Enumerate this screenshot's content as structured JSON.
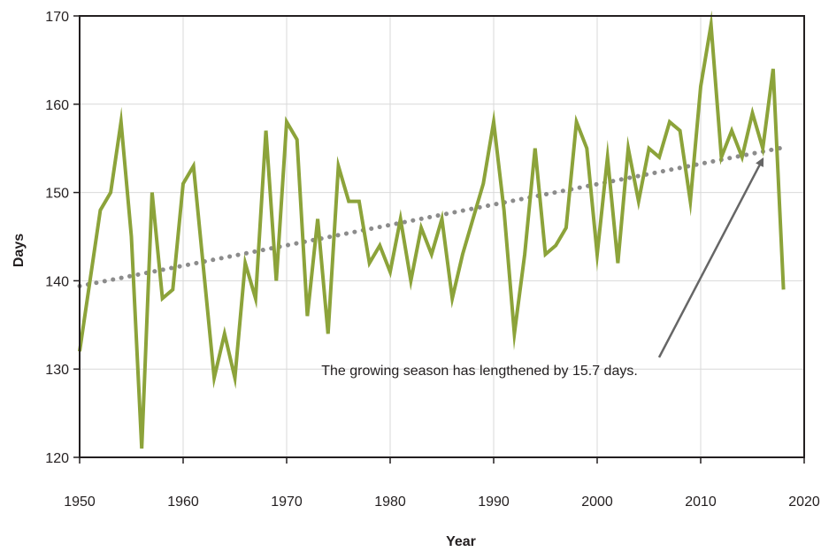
{
  "chart_data": {
    "type": "line",
    "title": "",
    "xlabel": "Year",
    "ylabel": "Days",
    "xlim": [
      1950,
      2020
    ],
    "ylim": [
      120,
      170
    ],
    "x_ticks": [
      1950,
      1960,
      1970,
      1980,
      1990,
      2000,
      2010,
      2020
    ],
    "y_ticks": [
      120,
      130,
      140,
      150,
      160,
      170
    ],
    "grid": true,
    "colors": {
      "series": "#8ca33a",
      "trend": "#8c8c8c",
      "arrow": "#666666",
      "grid": "#d9d9d9",
      "frame": "#231f20"
    },
    "series": [
      {
        "x": [
          1950,
          1951,
          1952,
          1953,
          1954,
          1955,
          1956,
          1957,
          1958,
          1959,
          1960,
          1961,
          1962,
          1963,
          1964,
          1965,
          1966,
          1967,
          1968,
          1969,
          1970,
          1971,
          1972,
          1973,
          1974,
          1975,
          1976,
          1977,
          1978,
          1979,
          1980,
          1981,
          1982,
          1983,
          1984,
          1985,
          1986,
          1987,
          1988,
          1989,
          1990,
          1991,
          1992,
          1993,
          1994,
          1995,
          1996,
          1997,
          1998,
          1999,
          2000,
          2001,
          2002,
          2003,
          2004,
          2005,
          2006,
          2007,
          2008,
          2009,
          2010,
          2011,
          2012,
          2013,
          2014,
          2015,
          2016,
          2017,
          2018
        ],
        "values": [
          132,
          140,
          148,
          150,
          158,
          145,
          121,
          150,
          138,
          139,
          151,
          153,
          141,
          129,
          134,
          129,
          142,
          138,
          157,
          140,
          158,
          156,
          136,
          147,
          134,
          153,
          149,
          149,
          142,
          144,
          141,
          147,
          140,
          146,
          143,
          147,
          138,
          143,
          147,
          151,
          158,
          148,
          134,
          143,
          155,
          143,
          144,
          146,
          158,
          155,
          143,
          154,
          142,
          155,
          149,
          155,
          154,
          158,
          157,
          149,
          162,
          169,
          154,
          157,
          154,
          159,
          155,
          164,
          139
        ]
      }
    ],
    "trendline": {
      "style": "dotted",
      "x": [
        1950,
        2018
      ],
      "values": [
        139.4,
        155.1
      ]
    },
    "annotation": {
      "text": "The growing season has lengthened by 15.7 days.",
      "arrow_to": {
        "x": 2016,
        "y": 153.8
      }
    }
  }
}
